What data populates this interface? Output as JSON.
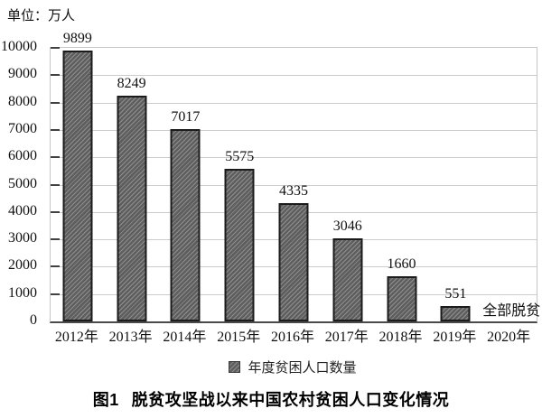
{
  "unit_label": "单位：万人",
  "caption": {
    "prefix": "图1",
    "title": "脱贫攻坚战以来中国农村贫困人口变化情况"
  },
  "chart_data": {
    "type": "bar",
    "title": "图1 脱贫攻坚战以来中国农村贫困人口变化情况",
    "unit_label": "单位：万人",
    "categories": [
      "2012年",
      "2013年",
      "2014年",
      "2015年",
      "2016年",
      "2017年",
      "2018年",
      "2019年",
      "2020年"
    ],
    "values": [
      9899,
      8249,
      7017,
      5575,
      4335,
      3046,
      1660,
      551,
      null
    ],
    "annotations": [
      {
        "index": 8,
        "text": "全部脱贫"
      }
    ],
    "ylim": [
      0,
      10000
    ],
    "ytick_interval": 1000,
    "ytick_labels": [
      "0",
      "1000",
      "2000",
      "3000",
      "4000",
      "5000",
      "6000",
      "7000",
      "8000",
      "9000",
      "10000"
    ],
    "legend": [
      "年度贫困人口数量"
    ],
    "legend_position": "bottom",
    "grid": "horizontal",
    "bar_fill": "#5e5e5e",
    "bar_hatch": "/",
    "bar_border": "#1b1b1b",
    "gridline_color": "#cccccc",
    "axis_color": "#4a4a4a"
  }
}
